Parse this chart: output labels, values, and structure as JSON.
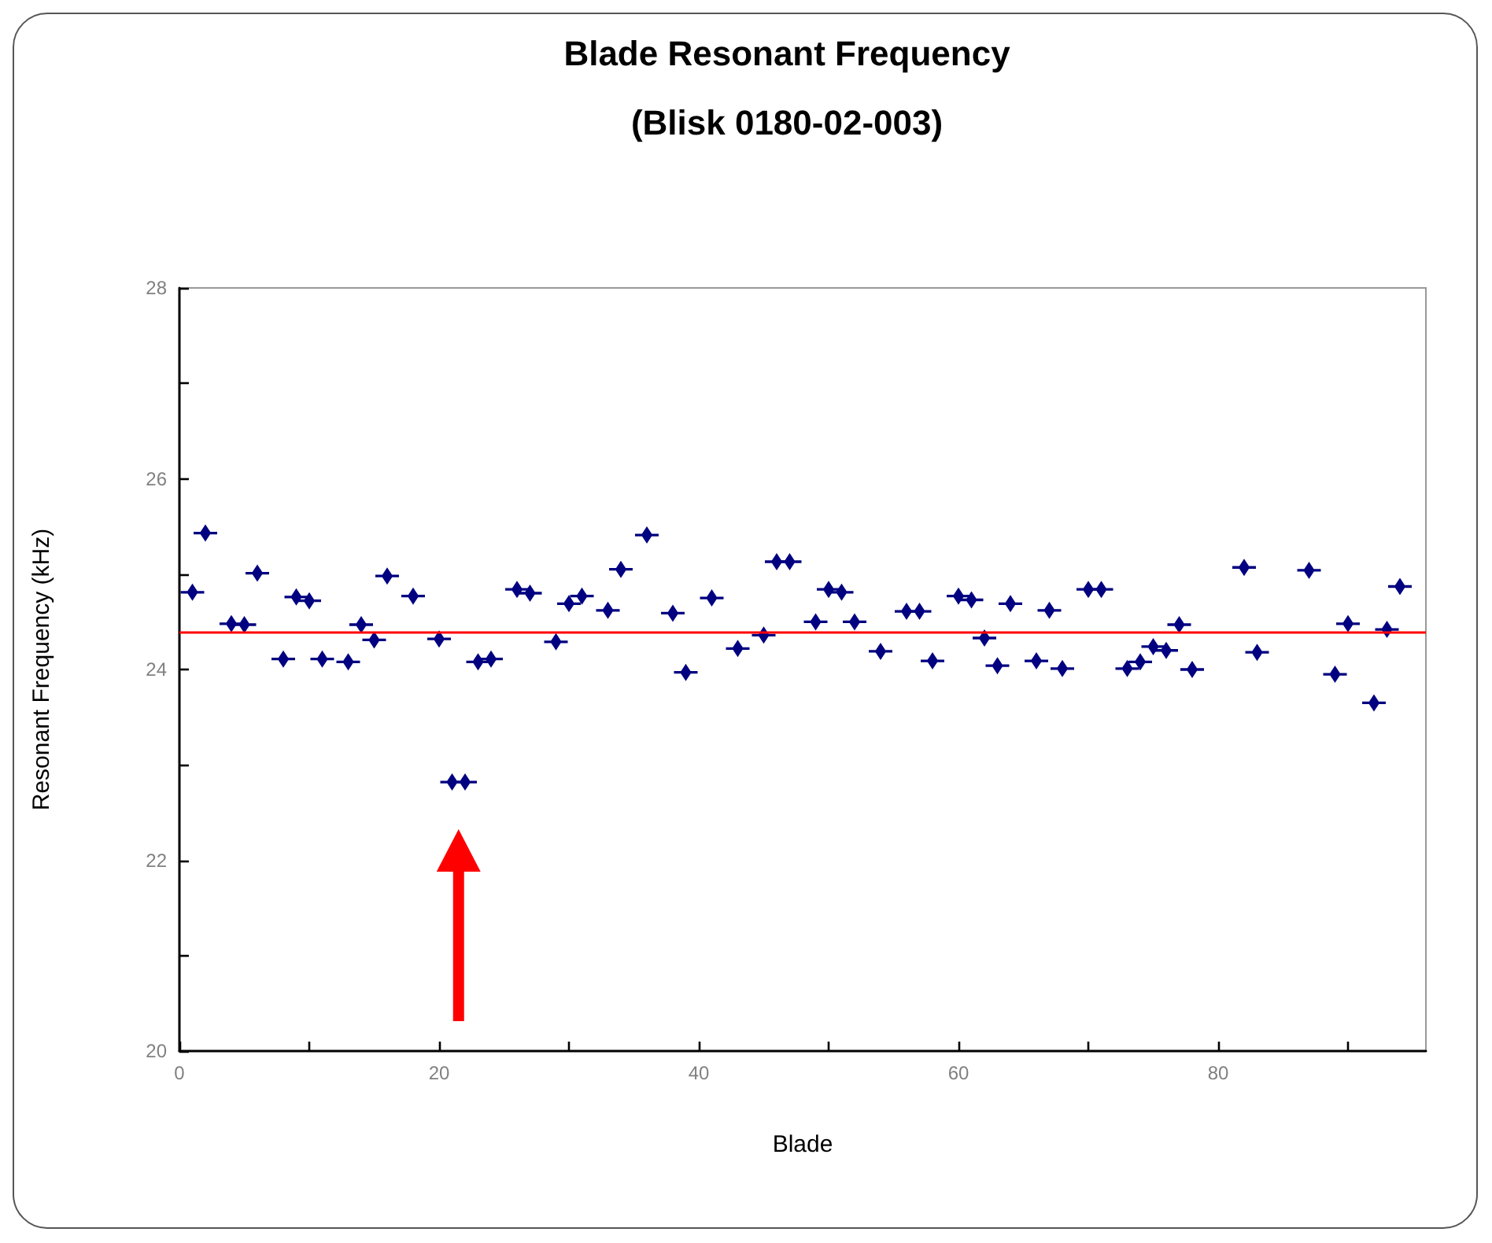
{
  "chart_data": {
    "type": "scatter",
    "title": "Blade Resonant Frequency",
    "subtitle": "(Blisk 0180-02-003)",
    "xlabel": "Blade",
    "ylabel": "Resonant Frequency (kHz)",
    "x": [
      1,
      2,
      4,
      5,
      6,
      8,
      9,
      10,
      11,
      13,
      14,
      15,
      16,
      18,
      20,
      21,
      22,
      23,
      24,
      26,
      27,
      29,
      30,
      31,
      33,
      34,
      36,
      38,
      39,
      41,
      43,
      45,
      46,
      47,
      49,
      50,
      51,
      52,
      54,
      56,
      57,
      58,
      60,
      61,
      62,
      63,
      64,
      66,
      67,
      68,
      70,
      71,
      73,
      74,
      75,
      76,
      77,
      78,
      82,
      83,
      87,
      89,
      90,
      92,
      93,
      94
    ],
    "values": [
      24.81,
      25.43,
      24.48,
      24.47,
      25.01,
      24.11,
      24.76,
      24.72,
      24.11,
      24.08,
      24.47,
      24.31,
      24.98,
      24.77,
      24.32,
      22.82,
      22.82,
      24.08,
      24.11,
      24.84,
      24.8,
      24.29,
      24.69,
      24.77,
      24.62,
      25.05,
      25.41,
      24.59,
      23.97,
      24.75,
      24.22,
      24.36,
      25.13,
      25.13,
      24.5,
      24.84,
      24.81,
      24.5,
      24.19,
      24.61,
      24.61,
      24.09,
      24.77,
      24.73,
      24.33,
      24.04,
      24.69,
      24.09,
      24.62,
      24.01,
      24.84,
      24.84,
      24.01,
      24.08,
      24.24,
      24.2,
      24.47,
      24.0,
      25.07,
      24.18,
      25.04,
      23.95,
      24.48,
      23.65,
      24.42,
      24.87
    ],
    "color": "#000080",
    "marker": "diamond",
    "xlim": [
      0,
      96
    ],
    "xticks": [
      0,
      {
        "value": 10,
        "label": null
      },
      20,
      {
        "value": 30,
        "label": null
      },
      40,
      {
        "value": 50,
        "label": null
      },
      60,
      {
        "value": 70,
        "label": null
      },
      80,
      {
        "value": 90,
        "label": null
      }
    ],
    "ylim": [
      20,
      28
    ],
    "yticks": [
      20,
      {
        "value": 21,
        "label": null
      },
      22,
      {
        "value": 23,
        "label": null
      },
      24,
      {
        "value": 25,
        "label": null
      },
      26,
      {
        "value": 27,
        "label": null
      },
      28
    ],
    "ref_lines": [
      {
        "axis": "y",
        "value": 24.4,
        "color": "#ff0000"
      }
    ]
  }
}
